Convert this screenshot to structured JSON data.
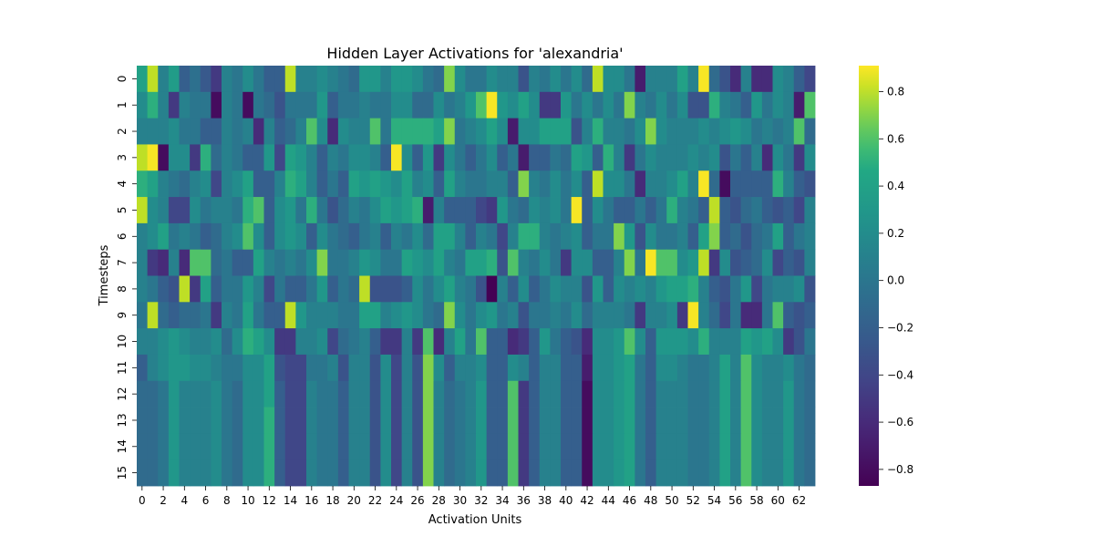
{
  "chart_data": {
    "type": "heatmap",
    "title": "Hidden Layer Activations for 'alexandria'",
    "xlabel": "Activation Units",
    "ylabel": "Timesteps",
    "x_tick_labels": [
      "0",
      "2",
      "4",
      "6",
      "8",
      "10",
      "12",
      "14",
      "16",
      "18",
      "20",
      "22",
      "24",
      "26",
      "28",
      "30",
      "32",
      "34",
      "36",
      "38",
      "40",
      "42",
      "44",
      "46",
      "48",
      "50",
      "52",
      "54",
      "56",
      "58",
      "60",
      "62"
    ],
    "y_tick_labels": [
      "0",
      "1",
      "2",
      "3",
      "4",
      "5",
      "6",
      "7",
      "8",
      "9",
      "10",
      "11",
      "12",
      "13",
      "14",
      "15"
    ],
    "colorbar": {
      "ticks": [
        0.8,
        0.6,
        0.4,
        0.2,
        0.0,
        -0.2,
        -0.4,
        -0.6,
        -0.8
      ],
      "tick_labels": [
        "0.8",
        "0.6",
        "0.4",
        "0.2",
        "0.0",
        "−0.2",
        "−0.4",
        "−0.6",
        "−0.8"
      ],
      "min": -0.87,
      "max": 0.91,
      "colormap": "viridis"
    },
    "rows": 16,
    "cols": 64,
    "values": [
      [
        0.4,
        0.8,
        0.1,
        0.35,
        -0.2,
        -0.05,
        -0.25,
        -0.5,
        0.1,
        0.0,
        0.2,
        0.0,
        -0.2,
        -0.2,
        0.8,
        0.1,
        0.1,
        0.2,
        0.1,
        0.0,
        -0.1,
        0.3,
        0.3,
        0.1,
        0.3,
        0.3,
        0.2,
        0.0,
        -0.1,
        0.7,
        0.2,
        0.0,
        0.0,
        0.2,
        0.1,
        0.1,
        -0.3,
        0.1,
        0.0,
        0.2,
        0.0,
        0.2,
        -0.1,
        0.8,
        0.2,
        0.2,
        0.0,
        -0.7,
        0.1,
        0.1,
        0.1,
        0.4,
        0.1,
        0.9,
        -0.1,
        -0.3,
        -0.6,
        0.1,
        -0.6,
        -0.6,
        0.2,
        0.1,
        -0.2,
        -0.4
      ],
      [
        0.2,
        0.5,
        0.1,
        -0.5,
        0.1,
        0.0,
        0.0,
        -0.8,
        0.1,
        0.0,
        -0.8,
        0.0,
        -0.1,
        -0.3,
        0.0,
        0.0,
        0.0,
        0.3,
        -0.2,
        0.0,
        0.0,
        0.1,
        0.0,
        0.0,
        0.2,
        0.2,
        -0.1,
        -0.1,
        0.2,
        0.0,
        0.1,
        0.3,
        0.6,
        0.9,
        0.3,
        0.2,
        0.4,
        0.2,
        -0.5,
        -0.5,
        0.3,
        0.0,
        0.2,
        0.0,
        0.2,
        0.0,
        0.7,
        0.1,
        0.0,
        0.2,
        0.0,
        0.2,
        -0.3,
        -0.3,
        0.5,
        0.1,
        0.0,
        -0.2,
        0.3,
        0.0,
        0.2,
        0.1,
        -0.7,
        0.6
      ],
      [
        0.1,
        0.1,
        0.1,
        0.2,
        0.0,
        0.0,
        -0.2,
        -0.2,
        0.1,
        0.0,
        0.1,
        -0.6,
        0.1,
        -0.2,
        -0.1,
        0.1,
        0.6,
        0.2,
        -0.6,
        0.2,
        0.1,
        0.1,
        0.6,
        0.0,
        0.5,
        0.5,
        0.5,
        0.5,
        0.4,
        0.7,
        0.0,
        0.1,
        0.2,
        0.4,
        0.2,
        -0.7,
        0.2,
        0.2,
        0.4,
        0.4,
        0.4,
        -0.3,
        0.1,
        0.5,
        0.1,
        0.1,
        0.0,
        0.2,
        0.7,
        0.2,
        0.1,
        0.1,
        0.1,
        0.2,
        0.1,
        0.2,
        0.3,
        0.2,
        0.0,
        0.1,
        0.0,
        0.1,
        0.6,
        -0.1
      ],
      [
        0.8,
        0.9,
        -0.8,
        0.2,
        0.2,
        -0.5,
        0.5,
        -0.1,
        0.1,
        0.0,
        -0.2,
        -0.2,
        0.3,
        -0.4,
        0.4,
        0.3,
        0.1,
        -0.2,
        0.1,
        0.0,
        0.2,
        0.2,
        0.1,
        -0.2,
        0.9,
        0.2,
        -0.2,
        0.3,
        -0.5,
        0.2,
        0.0,
        -0.2,
        0.0,
        0.2,
        -0.2,
        0.0,
        -0.7,
        -0.2,
        -0.2,
        0.0,
        -0.1,
        0.4,
        0.3,
        -0.2,
        0.5,
        0.1,
        -0.5,
        0.0,
        0.2,
        0.1,
        0.1,
        0.1,
        0.2,
        0.1,
        0.2,
        -0.3,
        0.0,
        -0.2,
        0.1,
        -0.6,
        0.2,
        0.0,
        -0.5,
        0.2
      ],
      [
        0.5,
        0.4,
        0.1,
        0.0,
        -0.1,
        0.1,
        0.2,
        -0.4,
        0.1,
        0.2,
        0.4,
        -0.2,
        -0.2,
        0.1,
        0.5,
        0.4,
        0.1,
        -0.2,
        0.0,
        -0.2,
        0.4,
        0.3,
        0.4,
        0.3,
        0.2,
        0.4,
        0.1,
        0.2,
        -0.2,
        0.4,
        0.1,
        0.0,
        0.0,
        0.1,
        0.1,
        -0.2,
        0.7,
        0.1,
        0.0,
        0.2,
        0.0,
        0.2,
        -0.2,
        0.8,
        0.2,
        0.2,
        0.0,
        -0.6,
        0.1,
        0.1,
        0.2,
        0.4,
        0.1,
        0.9,
        -0.1,
        -0.8,
        -0.2,
        -0.2,
        -0.2,
        -0.2,
        0.5,
        0.1,
        -0.2,
        -0.3
      ],
      [
        0.8,
        0.2,
        0.1,
        -0.4,
        -0.4,
        0.2,
        0.0,
        0.1,
        0.1,
        0.0,
        0.5,
        0.6,
        -0.2,
        0.2,
        0.3,
        0.0,
        0.5,
        0.0,
        -0.3,
        -0.1,
        0.1,
        0.0,
        0.2,
        0.4,
        0.3,
        0.4,
        0.5,
        -0.7,
        0.1,
        -0.2,
        -0.2,
        -0.2,
        -0.4,
        -0.5,
        0.3,
        0.0,
        -0.1,
        0.2,
        0.1,
        0.2,
        0.0,
        0.9,
        -0.2,
        0.2,
        0.0,
        -0.2,
        -0.2,
        0.0,
        -0.2,
        0.0,
        0.5,
        0.1,
        0.0,
        -0.2,
        0.8,
        -0.2,
        -0.3,
        -0.1,
        0.0,
        -0.2,
        -0.3,
        -0.2,
        -0.4,
        0.1
      ],
      [
        0.1,
        0.2,
        0.4,
        0.0,
        0.1,
        0.0,
        -0.2,
        -0.1,
        0.1,
        0.2,
        0.6,
        0.2,
        -0.2,
        0.2,
        0.3,
        0.2,
        -0.2,
        0.2,
        0.0,
        -0.1,
        -0.2,
        0.0,
        0.1,
        -0.2,
        0.1,
        0.0,
        0.2,
        -0.1,
        0.4,
        0.4,
        0.1,
        -0.2,
        0.1,
        0.0,
        -0.4,
        0.1,
        0.5,
        0.5,
        0.1,
        0.0,
        0.1,
        0.2,
        -0.2,
        0.0,
        0.0,
        0.7,
        0.3,
        -0.3,
        0.2,
        0.0,
        0.0,
        0.1,
        -0.2,
        0.4,
        0.7,
        -0.2,
        -0.1,
        -0.3,
        -0.1,
        0.0,
        0.4,
        -0.2,
        0.0,
        0.1
      ],
      [
        0.1,
        -0.5,
        -0.6,
        0.1,
        -0.6,
        0.6,
        0.6,
        -0.1,
        0.0,
        -0.2,
        -0.2,
        0.4,
        0.1,
        0.0,
        0.1,
        0.0,
        0.2,
        0.7,
        0.0,
        0.0,
        0.1,
        0.3,
        0.2,
        0.0,
        0.0,
        0.4,
        0.3,
        0.2,
        0.4,
        0.1,
        0.0,
        0.4,
        0.4,
        0.5,
        -0.3,
        0.6,
        0.1,
        0.0,
        0.2,
        0.0,
        -0.5,
        0.2,
        0.2,
        -0.2,
        -0.2,
        0.1,
        0.7,
        0.0,
        0.9,
        0.6,
        0.6,
        0.2,
        0.3,
        0.8,
        -0.5,
        0.2,
        -0.3,
        -0.2,
        -0.1,
        0.2,
        -0.4,
        -0.2,
        -0.3,
        0.1
      ],
      [
        0.1,
        0.0,
        -0.2,
        -0.3,
        0.8,
        -0.5,
        0.4,
        -0.2,
        0.0,
        0.0,
        0.3,
        0.1,
        -0.4,
        0.0,
        -0.2,
        -0.2,
        0.0,
        0.3,
        -0.2,
        0.0,
        -0.1,
        0.8,
        -0.3,
        -0.3,
        -0.3,
        -0.2,
        0.2,
        0.0,
        0.2,
        0.4,
        0.1,
        0.0,
        -0.3,
        -0.87,
        0.1,
        -0.2,
        0.2,
        -0.2,
        0.0,
        0.2,
        0.1,
        0.1,
        -0.3,
        0.3,
        -0.2,
        0.2,
        0.1,
        0.2,
        0.1,
        0.3,
        0.4,
        0.4,
        0.5,
        0.1,
        -0.2,
        -0.3,
        0.0,
        0.3,
        -0.4,
        0.0,
        0.1,
        0.1,
        0.2,
        -0.3
      ],
      [
        0.0,
        0.8,
        -0.1,
        -0.2,
        -0.1,
        -0.1,
        0.0,
        -0.5,
        0.1,
        0.0,
        0.4,
        0.0,
        -0.2,
        -0.2,
        0.8,
        0.3,
        0.1,
        0.1,
        0.1,
        0.0,
        0.0,
        0.4,
        0.4,
        0.1,
        0.2,
        0.3,
        0.2,
        0.0,
        -0.1,
        0.7,
        0.2,
        0.0,
        0.2,
        0.3,
        0.0,
        0.1,
        -0.3,
        0.0,
        0.0,
        0.1,
        0.0,
        0.2,
        -0.1,
        0.1,
        0.1,
        0.1,
        0.0,
        -0.5,
        0.1,
        0.1,
        0.2,
        -0.5,
        0.9,
        0.1,
        -0.1,
        -0.4,
        0.0,
        -0.6,
        -0.6,
        0.0,
        0.6,
        -0.2,
        -0.3,
        -0.2
      ],
      [
        0.1,
        0.1,
        0.2,
        0.3,
        0.2,
        0.1,
        0.1,
        0.2,
        -0.1,
        0.2,
        0.5,
        0.4,
        0.2,
        -0.5,
        -0.5,
        0.1,
        0.1,
        0.2,
        -0.4,
        -0.1,
        0.0,
        0.1,
        -0.2,
        -0.5,
        -0.5,
        0.1,
        -0.5,
        0.6,
        -0.6,
        0.1,
        0.4,
        0.0,
        0.6,
        -0.2,
        -0.2,
        -0.6,
        -0.5,
        -0.2,
        0.3,
        0.0,
        -0.2,
        -0.3,
        -0.6,
        0.2,
        0.2,
        0.3,
        0.6,
        0.2,
        -0.2,
        0.3,
        0.3,
        0.3,
        0.2,
        0.5,
        0.1,
        0.1,
        0.1,
        0.4,
        0.3,
        0.4,
        0.2,
        -0.5,
        -0.3,
        0.0
      ],
      [
        -0.2,
        0.1,
        0.2,
        0.3,
        0.3,
        0.2,
        0.2,
        0.1,
        0.0,
        0.0,
        0.2,
        0.2,
        0.4,
        -0.3,
        -0.4,
        -0.4,
        0.0,
        0.0,
        0.1,
        -0.3,
        0.1,
        0.1,
        -0.3,
        0.2,
        -0.4,
        0.1,
        -0.3,
        0.7,
        0.2,
        -0.2,
        0.1,
        0.1,
        0.2,
        -0.2,
        -0.2,
        0.2,
        0.1,
        -0.2,
        0.1,
        0.1,
        -0.2,
        -0.2,
        -0.7,
        0.2,
        0.2,
        0.3,
        0.4,
        0.0,
        -0.2,
        0.2,
        0.2,
        0.1,
        0.0,
        0.0,
        0.1,
        0.4,
        0.1,
        0.6,
        0.2,
        0.1,
        0.1,
        0.2,
        0.0,
        -0.1
      ],
      [
        -0.1,
        -0.1,
        0.0,
        0.3,
        0.1,
        0.1,
        0.1,
        0.2,
        0.0,
        -0.1,
        0.2,
        0.2,
        0.4,
        -0.2,
        -0.4,
        -0.4,
        0.1,
        0.0,
        0.0,
        -0.2,
        0.1,
        0.1,
        -0.3,
        0.2,
        -0.4,
        0.1,
        -0.3,
        0.7,
        0.1,
        -0.1,
        0.0,
        0.1,
        0.3,
        -0.2,
        -0.2,
        0.6,
        -0.5,
        -0.2,
        0.1,
        0.1,
        -0.2,
        -0.2,
        -0.8,
        0.2,
        0.2,
        0.3,
        0.4,
        0.0,
        -0.2,
        0.1,
        0.1,
        0.1,
        0.0,
        0.0,
        0.1,
        0.4,
        0.1,
        0.6,
        0.2,
        0.1,
        0.1,
        0.3,
        0.0,
        -0.1
      ],
      [
        -0.1,
        -0.1,
        0.0,
        0.3,
        0.1,
        0.1,
        0.1,
        0.2,
        0.0,
        -0.1,
        0.2,
        0.2,
        0.5,
        -0.2,
        -0.4,
        -0.4,
        0.1,
        0.0,
        0.0,
        -0.2,
        0.1,
        0.1,
        -0.3,
        0.2,
        -0.4,
        0.1,
        -0.3,
        0.7,
        0.1,
        -0.1,
        0.0,
        0.1,
        0.3,
        -0.2,
        -0.2,
        0.6,
        -0.5,
        -0.2,
        0.1,
        0.1,
        -0.2,
        -0.2,
        -0.8,
        0.2,
        0.2,
        0.3,
        0.4,
        0.0,
        -0.2,
        0.1,
        0.1,
        0.1,
        0.0,
        0.0,
        0.1,
        0.4,
        0.1,
        0.6,
        0.2,
        0.1,
        0.1,
        0.3,
        0.0,
        -0.1
      ],
      [
        -0.1,
        -0.1,
        0.0,
        0.3,
        0.1,
        0.1,
        0.1,
        0.2,
        0.0,
        -0.1,
        0.2,
        0.2,
        0.5,
        -0.2,
        -0.4,
        -0.4,
        0.1,
        0.0,
        0.0,
        -0.2,
        0.1,
        0.1,
        -0.3,
        0.2,
        -0.4,
        0.1,
        -0.3,
        0.7,
        0.1,
        -0.1,
        0.0,
        0.1,
        0.3,
        -0.2,
        -0.2,
        0.6,
        -0.5,
        -0.2,
        0.1,
        0.1,
        -0.2,
        -0.2,
        -0.8,
        0.2,
        0.2,
        0.3,
        0.4,
        0.0,
        -0.2,
        0.1,
        0.1,
        0.1,
        0.0,
        0.0,
        0.1,
        0.4,
        0.1,
        0.6,
        0.2,
        0.1,
        0.1,
        0.3,
        0.0,
        -0.1
      ],
      [
        -0.1,
        -0.1,
        0.0,
        0.3,
        0.1,
        0.1,
        0.1,
        0.2,
        0.0,
        -0.1,
        0.2,
        0.2,
        0.5,
        -0.2,
        -0.4,
        -0.4,
        0.1,
        0.0,
        0.0,
        -0.2,
        0.1,
        0.1,
        -0.3,
        0.2,
        -0.4,
        0.1,
        -0.3,
        0.7,
        0.1,
        -0.1,
        0.0,
        0.1,
        0.3,
        -0.2,
        -0.2,
        0.6,
        -0.5,
        -0.2,
        0.1,
        0.1,
        -0.2,
        -0.2,
        -0.8,
        0.2,
        0.2,
        0.3,
        0.4,
        0.0,
        -0.2,
        0.1,
        0.1,
        0.1,
        0.0,
        0.0,
        0.1,
        0.4,
        0.1,
        0.6,
        0.2,
        0.1,
        0.1,
        0.3,
        0.0,
        -0.1
      ]
    ]
  }
}
